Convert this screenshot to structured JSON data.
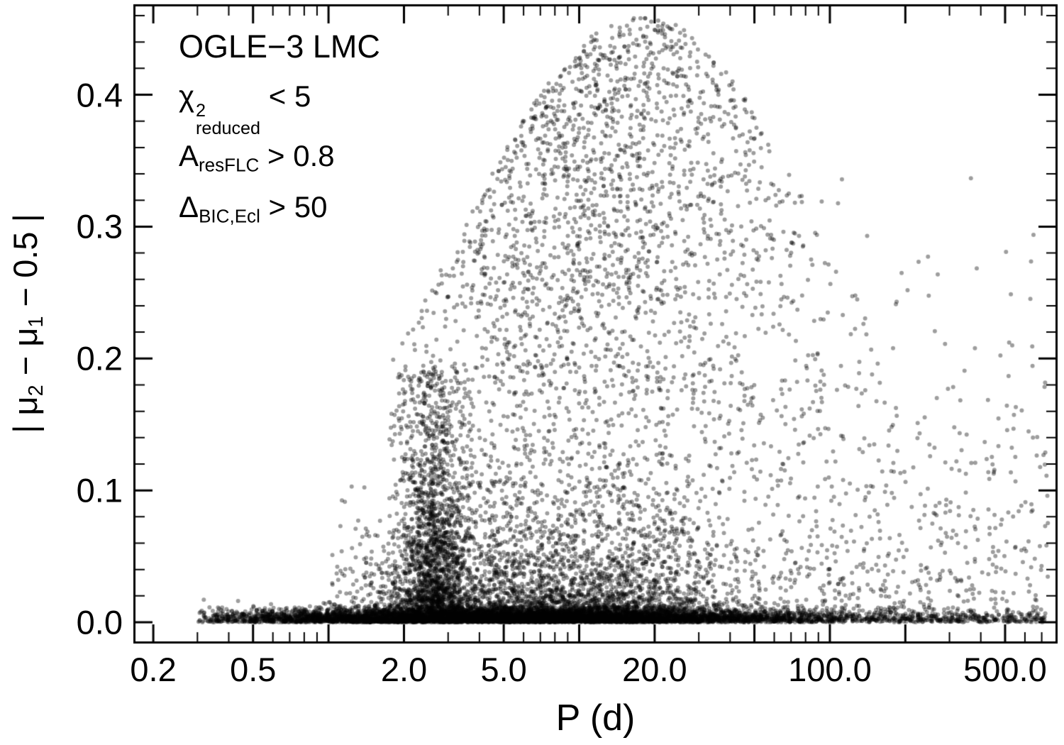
{
  "chart_data": {
    "type": "scatter",
    "title": "",
    "xlabel": "P (d)",
    "ylabel_parts": {
      "p1": "| μ",
      "s1": "2",
      "p2": " − μ",
      "s2": "1",
      "p3": " − 0.5 |"
    },
    "x_scale": "log",
    "grid": false,
    "x_ticks": [
      0.2,
      0.5,
      2,
      5,
      20,
      100,
      500
    ],
    "x_tick_labels": [
      "0.2",
      "0.5",
      "2.0",
      "5.0",
      "20.0",
      "100.0",
      "500.0"
    ],
    "x_major_ticks": [
      0.2,
      0.5,
      1,
      2,
      5,
      10,
      20,
      50,
      100,
      200,
      500
    ],
    "x_minor_ticks": [
      0.3,
      0.4,
      0.6,
      0.7,
      0.8,
      0.9,
      3,
      4,
      6,
      7,
      8,
      9,
      30,
      40,
      60,
      70,
      80,
      90,
      300,
      400,
      600,
      700
    ],
    "y_ticks": [
      0.0,
      0.1,
      0.2,
      0.3,
      0.4
    ],
    "y_tick_labels": [
      "0.0",
      "0.1",
      "0.2",
      "0.3",
      "0.4"
    ],
    "y_minor_step": 0.02,
    "xlog_range": [
      -0.77,
      2.9
    ],
    "ylim": [
      -0.0145,
      0.467
    ],
    "annotations": {
      "dataset": "OGLE−3 LMC",
      "chi": {
        "base": "χ",
        "sup": "2",
        "sub": "reduced",
        "op": " < 5"
      },
      "amp": {
        "base": "A",
        "sub": "resFLC",
        "op": " > 0.8"
      },
      "delta": {
        "base": "Δ",
        "sub": "BIC,Ecl",
        "op": " > 50"
      }
    },
    "marker": {
      "color": "#000000",
      "opacity": 0.38,
      "radius": 3
    },
    "points_spec": {
      "comment": "Procedural representation of ~15700 eclipsing-binary points: dense band at y~0 over 0.3<P<700 d, dark plume at P~2-3 d up to y~0.19, broad cloud 1.5<P<100 d reaching y~0.45, sparse long-period tail.",
      "seed": 20240731,
      "components": [
        {
          "name": "baseline-dense",
          "n": 6500,
          "logx": {
            "dist": "normal",
            "mean": 0.75,
            "sigma": 0.55,
            "min": -0.52,
            "max": 2.86
          },
          "y": {
            "dist": "halfnormal",
            "scale": 0.005,
            "max": 0.03
          }
        },
        {
          "name": "baseline-wide",
          "n": 1500,
          "logx": {
            "dist": "uniform",
            "min": -0.45,
            "max": 2.86
          },
          "y": {
            "dist": "halfnormal",
            "scale": 0.004,
            "max": 0.02
          }
        },
        {
          "name": "low-cloud",
          "n": 3000,
          "logx": {
            "dist": "normal",
            "mean": 0.9,
            "sigma": 0.42,
            "min": 0.0,
            "max": 2.5
          },
          "y": {
            "dist": "exp",
            "scale": 0.03,
            "min": 0.003,
            "max": 0.13
          }
        },
        {
          "name": "short-period-plume",
          "n": 1600,
          "logx": {
            "dist": "normal",
            "mean": 0.42,
            "sigma": 0.07,
            "min": 0.2,
            "max": 0.75
          },
          "y": {
            "dist": "exp",
            "scale": 0.08,
            "min": 0.002,
            "max": 0.195
          }
        },
        {
          "name": "mid-cloud",
          "n": 2600,
          "logx": {
            "dist": "normal",
            "mean": 1.1,
            "sigma": 0.4,
            "min": 0.25,
            "max": 2.2
          },
          "y": {
            "dist": "power",
            "exp": 0.65,
            "min": 0.02,
            "env_peak": 1.25,
            "env_sigma": 0.75,
            "env_max": 0.44,
            "env_min": 0.16
          }
        },
        {
          "name": "long-period-tail",
          "n": 500,
          "logx": {
            "dist": "uniform",
            "min": 1.8,
            "max": 2.87
          },
          "y": {
            "dist": "exp",
            "scale": 0.08,
            "min": 0.002,
            "max": 0.36
          }
        }
      ]
    }
  }
}
